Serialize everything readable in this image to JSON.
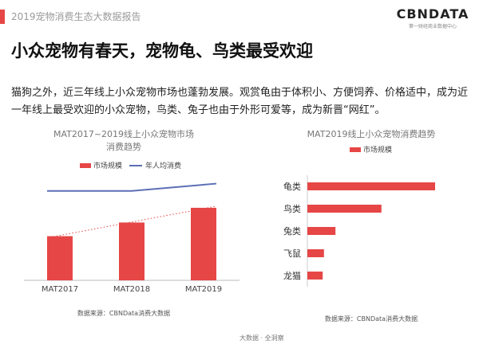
{
  "header": {
    "report_title": "2019宠物消费生态大数据报告",
    "logo_text": "CBNDATA",
    "logo_subtext": "第一财经商业数据中心",
    "accent_color": "#e64646"
  },
  "headline": "小众宠物有春天，宠物龟、鸟类最受欢迎",
  "intro_text": "猫狗之外，近三年线上小众宠物市场也蓬勃发展。观赏龟由于体积小、方便饲养、价格适中，成为近一年线上最受欢迎的小众宠物，鸟类、兔子也由于外形可爱等，成为新晋“网红”。",
  "footer_mark": "大数据 · 全洞察",
  "chart_data": [
    {
      "type": "bar",
      "title": "MAT2017~2019线上小众宠物市场消费趋势",
      "title_lines": [
        "MAT2017~2019线上小众宠物市场",
        "消费趋势"
      ],
      "categories": [
        "MAT2017",
        "MAT2018",
        "MAT2019"
      ],
      "series": [
        {
          "name": "市场规模",
          "kind": "bar",
          "color": "#e64646",
          "values": [
            42,
            55,
            69
          ]
        },
        {
          "name": "年人均消费",
          "kind": "line",
          "color": "#5b6fb5",
          "values": [
            85,
            85,
            92
          ]
        }
      ],
      "trend_line": {
        "kind": "dotted",
        "color": "#e64646"
      },
      "ylim": [
        0,
        100
      ],
      "source": "数据来源：CBNData消费大数据",
      "legend_position": "top"
    },
    {
      "type": "bar",
      "orientation": "horizontal",
      "title": "MAT2019线上小众宠物消费趋势",
      "categories": [
        "龟类",
        "鸟类",
        "兔类",
        "飞鼠",
        "龙猫"
      ],
      "series": [
        {
          "name": "市场规模",
          "color": "#e64646",
          "values": [
            100,
            58,
            22,
            13,
            12
          ]
        }
      ],
      "xlim": [
        0,
        100
      ],
      "source": "数据来源：CBNData消费大数据",
      "legend_position": "top"
    }
  ]
}
